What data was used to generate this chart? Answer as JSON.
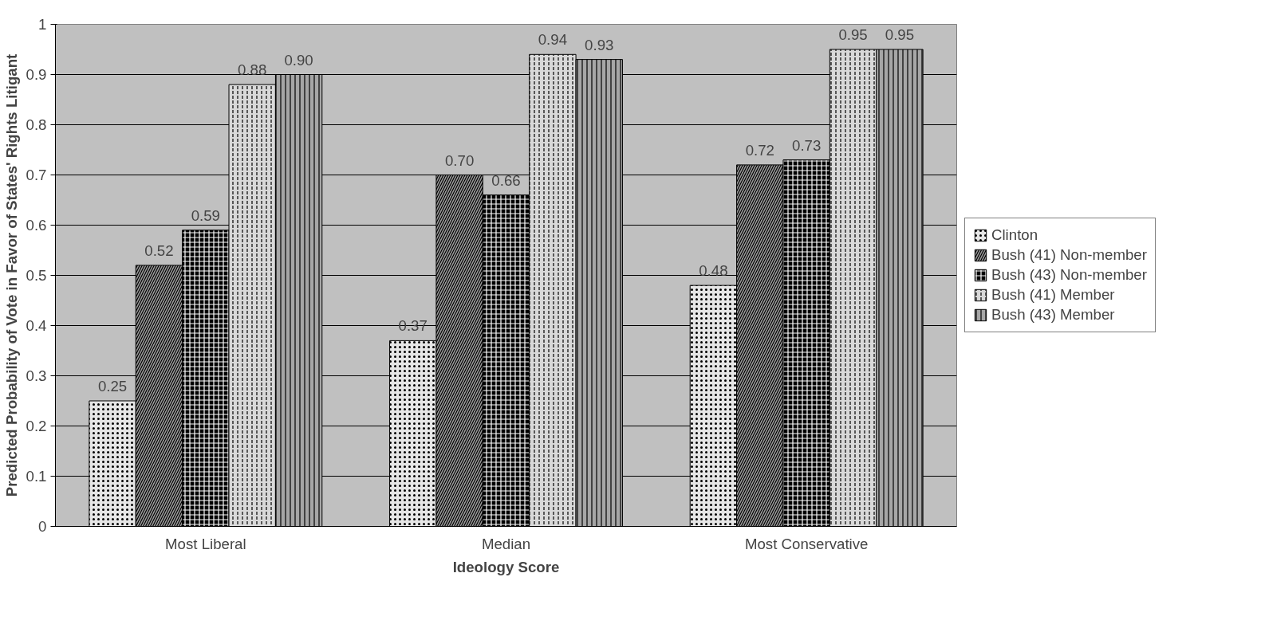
{
  "chart_data": {
    "type": "bar",
    "xlabel": "Ideology Score",
    "ylabel": "Predicted Probability of Vote in Favor of States' Rights Litigant",
    "categories": [
      "Most Liberal",
      "Median",
      "Most Conservative"
    ],
    "series": [
      {
        "name": "Clinton",
        "color": "#e6e6e6",
        "values": [
          0.25,
          0.37,
          0.48
        ],
        "value_labels": [
          "0.25",
          "0.37",
          "0.48"
        ]
      },
      {
        "name": "Bush (41) Non-member",
        "color": "#9a9a9a",
        "values": [
          0.52,
          0.7,
          0.72
        ],
        "value_labels": [
          "0.52",
          "0.70",
          "0.72"
        ]
      },
      {
        "name": "Bush (43) Non-member",
        "color": "#000000",
        "values": [
          0.59,
          0.66,
          0.73
        ],
        "value_labels": [
          "0.59",
          "0.66",
          "0.73"
        ]
      },
      {
        "name": "Bush (41) Member",
        "color": "#d9d9d9",
        "values": [
          0.88,
          0.94,
          0.95
        ],
        "value_labels": [
          "0.88",
          "0.94",
          "0.95"
        ]
      },
      {
        "name": "Bush (43) Member",
        "color": "#a6a6a6",
        "values": [
          0.9,
          0.93,
          0.95
        ],
        "value_labels": [
          "0.90",
          "0.93",
          "0.95"
        ]
      }
    ],
    "ylim": [
      0,
      1
    ],
    "yticks": [
      0,
      0.1,
      0.2,
      0.3,
      0.4,
      0.5,
      0.6,
      0.7,
      0.8,
      0.9,
      1
    ],
    "grid": "y",
    "legend": "right"
  }
}
